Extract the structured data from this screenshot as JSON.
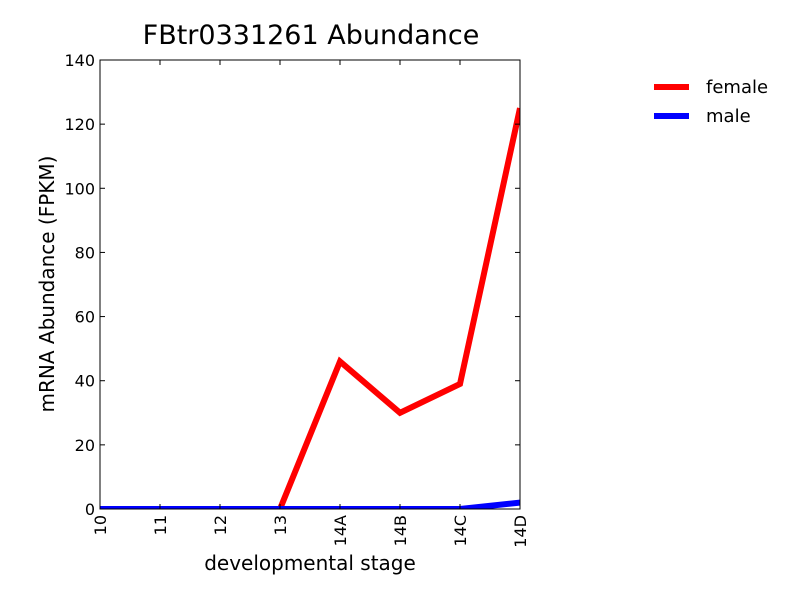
{
  "chart_data": {
    "type": "line",
    "title": "FBtr0331261 Abundance",
    "xlabel": "developmental stage",
    "ylabel": "mRNA Abundance (FPKM)",
    "categories": [
      "10",
      "11",
      "12",
      "13",
      "14A",
      "14B",
      "14C",
      "14D"
    ],
    "ylim": [
      0,
      140
    ],
    "yticks": [
      0,
      20,
      40,
      60,
      80,
      100,
      120,
      140
    ],
    "grid": false,
    "legend_position": "outside-right",
    "series": [
      {
        "name": "female",
        "color": "#ff0000",
        "values": [
          0,
          0,
          0,
          0,
          46,
          30,
          39,
          125
        ]
      },
      {
        "name": "male",
        "color": "#0000ff",
        "values": [
          0,
          0,
          0,
          0,
          0,
          0,
          0,
          2
        ]
      }
    ]
  }
}
